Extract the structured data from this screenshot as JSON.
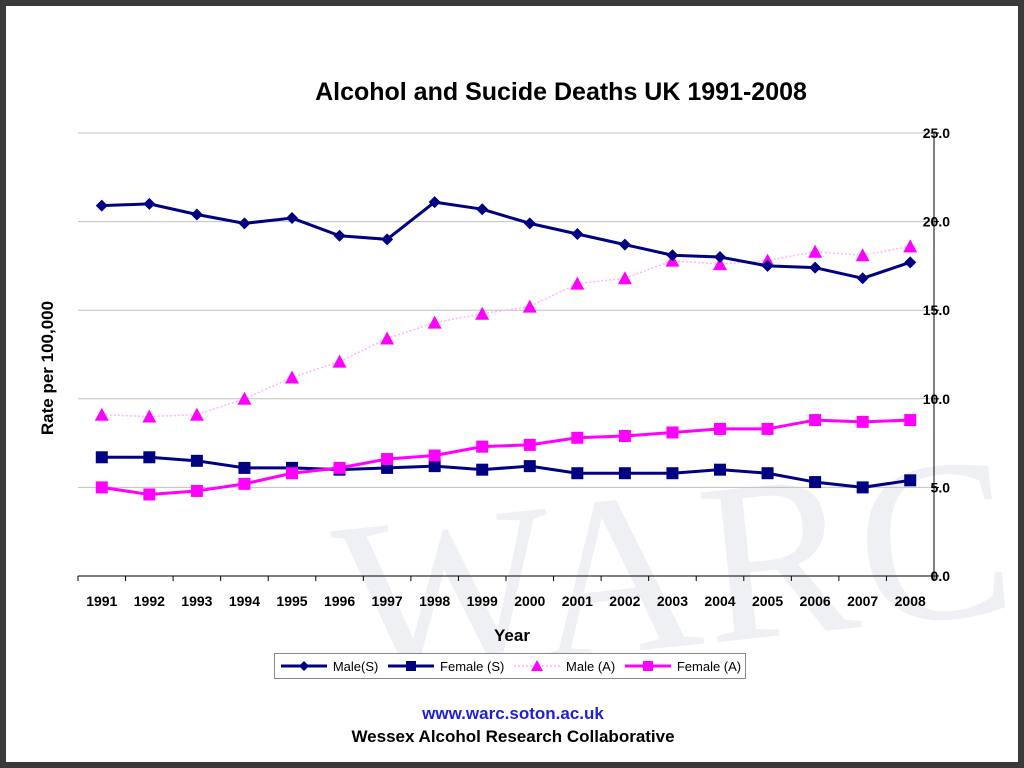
{
  "watermark": "WARC",
  "footer": {
    "url": "www.warc.soton.ac.uk",
    "organization": "Wessex Alcohol Research Collaborative"
  },
  "colors": {
    "navy": "#000080",
    "magenta": "#ff00ff",
    "male_a_line": "#ffb3ff",
    "grid": "#c0c0c0"
  },
  "chart_data": {
    "type": "line",
    "title": "Alcohol and Sucide Deaths UK 1991-2008",
    "xlabel": "Year",
    "ylabel": "Rate per 100,000",
    "ylim": [
      0,
      25
    ],
    "y_ticks": [
      "0.0",
      "5.0",
      "10.0",
      "15.0",
      "20.0",
      "25.0"
    ],
    "y_axis_side": "right",
    "grid": "horizontal",
    "legend_position": "bottom",
    "categories": [
      "1991",
      "1992",
      "1993",
      "1994",
      "1995",
      "1996",
      "1997",
      "1998",
      "1999",
      "2000",
      "2001",
      "2002",
      "2003",
      "2004",
      "2005",
      "2006",
      "2007",
      "2008"
    ],
    "series": [
      {
        "name": "Male(S)",
        "color": "#000080",
        "marker": "diamond",
        "line": "solid",
        "values": [
          20.9,
          21.0,
          20.4,
          19.9,
          20.2,
          19.2,
          19.0,
          21.1,
          20.7,
          19.9,
          19.3,
          18.7,
          18.1,
          18.0,
          17.5,
          17.4,
          16.8,
          17.7
        ]
      },
      {
        "name": "Female (S)",
        "color": "#000080",
        "marker": "square",
        "line": "solid",
        "values": [
          6.7,
          6.7,
          6.5,
          6.1,
          6.1,
          6.0,
          6.1,
          6.2,
          6.0,
          6.2,
          5.8,
          5.8,
          5.8,
          6.0,
          5.8,
          5.3,
          5.0,
          5.4
        ]
      },
      {
        "name": "Male (A)",
        "color": "#ff00ff",
        "marker": "triangle",
        "line": "dotted",
        "values": [
          9.1,
          9.0,
          9.1,
          10.0,
          11.2,
          12.1,
          13.4,
          14.3,
          14.8,
          15.2,
          16.5,
          16.8,
          17.8,
          17.6,
          17.8,
          18.3,
          18.1,
          18.6
        ]
      },
      {
        "name": "Female (A)",
        "color": "#ff00ff",
        "marker": "square",
        "line": "solid",
        "values": [
          5.0,
          4.6,
          4.8,
          5.2,
          5.8,
          6.1,
          6.6,
          6.8,
          7.3,
          7.4,
          7.8,
          7.9,
          8.1,
          8.3,
          8.3,
          8.8,
          8.7,
          8.8
        ]
      }
    ]
  }
}
